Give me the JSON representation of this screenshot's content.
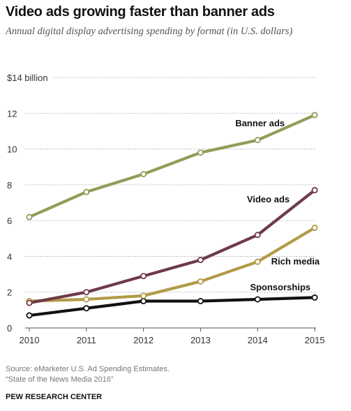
{
  "title": "Video ads growing faster than banner ads",
  "subtitle": "Annual digital display advertising spending by format (in U.S. dollars)",
  "source_line1": "Source: eMarketer U.S. Ad Spending Estimates.",
  "source_line2": "“State of the News Media 2016”",
  "brand": "PEW RESEARCH CENTER",
  "chart_data": {
    "type": "line",
    "x": [
      2010,
      2011,
      2012,
      2013,
      2014,
      2015
    ],
    "ylim": [
      0,
      14
    ],
    "yticks": [
      0,
      2,
      4,
      6,
      8,
      10,
      12,
      14
    ],
    "ytick_labels": [
      "0",
      "2",
      "4",
      "6",
      "8",
      "10",
      "12",
      "$14 billion"
    ],
    "grid": true,
    "series": [
      {
        "name": "Banner ads",
        "color": "#8e9e58",
        "values": [
          6.2,
          7.6,
          8.6,
          9.8,
          10.5,
          11.9
        ]
      },
      {
        "name": "Video ads",
        "color": "#6e3a48",
        "values": [
          1.4,
          2.0,
          2.9,
          3.8,
          5.2,
          7.7
        ]
      },
      {
        "name": "Rich media",
        "color": "#b39a47",
        "values": [
          1.5,
          1.6,
          1.8,
          2.6,
          3.7,
          5.6
        ]
      },
      {
        "name": "Sponsorships",
        "color": "#111111",
        "values": [
          0.7,
          1.1,
          1.5,
          1.5,
          1.6,
          1.7
        ]
      }
    ]
  }
}
